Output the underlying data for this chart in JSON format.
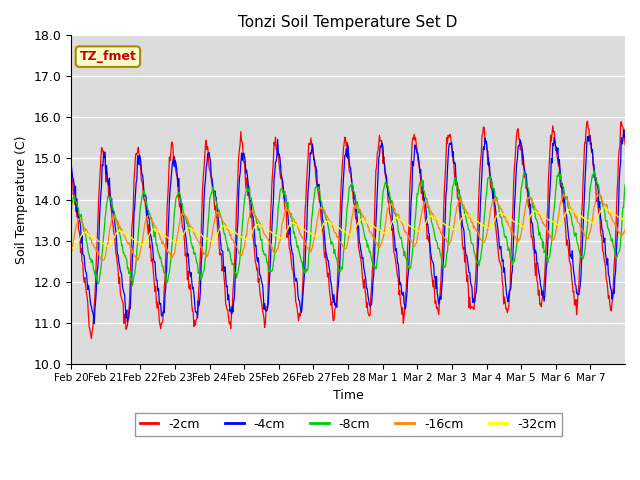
{
  "title": "Tonzi Soil Temperature Set D",
  "xlabel": "Time",
  "ylabel": "Soil Temperature (C)",
  "ylim": [
    10.0,
    18.0
  ],
  "yticks": [
    10.0,
    11.0,
    12.0,
    13.0,
    14.0,
    15.0,
    16.0,
    17.0,
    18.0
  ],
  "xtick_labels": [
    "Feb 20",
    "Feb 21",
    "Feb 22",
    "Feb 23",
    "Feb 24",
    "Feb 25",
    "Feb 26",
    "Feb 27",
    "Feb 28",
    "Mar 1",
    "Mar 2",
    "Mar 3",
    "Mar 4",
    "Mar 5",
    "Mar 6",
    "Mar 7"
  ],
  "series_labels": [
    "-2cm",
    "-4cm",
    "-8cm",
    "-16cm",
    "-32cm"
  ],
  "series_colors": [
    "#ff0000",
    "#0000ff",
    "#00cc00",
    "#ff8800",
    "#ffff00"
  ],
  "legend_label": "TZ_fmet",
  "legend_bg": "#ffffcc",
  "legend_edge": "#aa8800",
  "bg_color": "#dcdcdc",
  "n_days": 16,
  "base_mean": 13.1,
  "amplitudes": [
    2.7,
    2.4,
    1.3,
    0.65,
    0.22
  ],
  "phase_shifts_days": [
    0.0,
    0.05,
    0.18,
    0.32,
    0.48
  ],
  "pts_per_day": 48,
  "figsize": [
    6.4,
    4.8
  ],
  "dpi": 100
}
